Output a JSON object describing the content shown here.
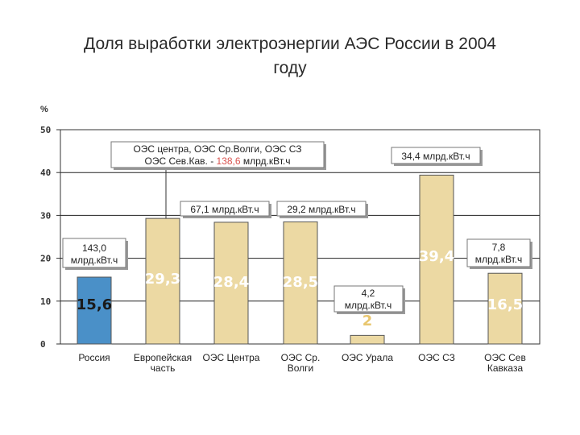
{
  "title": "Доля выработки электроэнергии АЭС России в 2004\nгоду",
  "chart_data": {
    "type": "bar",
    "ylabel": "%",
    "ylim": [
      0,
      50
    ],
    "yticks": [
      "0",
      "10",
      "20",
      "30",
      "40",
      "50"
    ],
    "grid": true,
    "categories": [
      "Россия",
      "Европейская часть",
      "ОЭС Центра",
      "ОЭС Ср. Волги",
      "ОЭС Урала",
      "ОЭС СЗ",
      "ОЭС Сев Кавказа"
    ],
    "values": [
      15.6,
      29.3,
      28.4,
      28.5,
      2,
      39.4,
      16.5
    ],
    "value_labels": [
      "15,6",
      "29,3",
      "28,4",
      "28,5",
      "2",
      "39,4",
      "16,5"
    ],
    "colors": {
      "highlight": "#4a90c8",
      "bar": "#ecd9a3",
      "value_text": "#ffffff",
      "value_text_dark": "#1a1a1a",
      "value_text_urals": "#e8c66e",
      "accent_red": "#d9534f"
    },
    "annotations": [
      {
        "lines": [
          "143,0",
          "млрд.кВт.ч"
        ]
      },
      {
        "lines": [
          "ОЭС центра, ОЭС Ср.Волги, ОЭС СЗ",
          "ОЭС Сев.Кав. - 138,6 млрд.кВт.ч"
        ],
        "highlight": "138,6"
      },
      {
        "lines": [
          "67,1 млрд.кВт.ч"
        ]
      },
      {
        "lines": [
          "29,2 млрд.кВт.ч"
        ]
      },
      {
        "lines": [
          "4,2",
          "млрд.кВт.ч"
        ]
      },
      {
        "lines": [
          "34,4 млрд.кВт.ч"
        ]
      },
      {
        "lines": [
          "7,8",
          "млрд.кВт.ч"
        ]
      }
    ]
  }
}
